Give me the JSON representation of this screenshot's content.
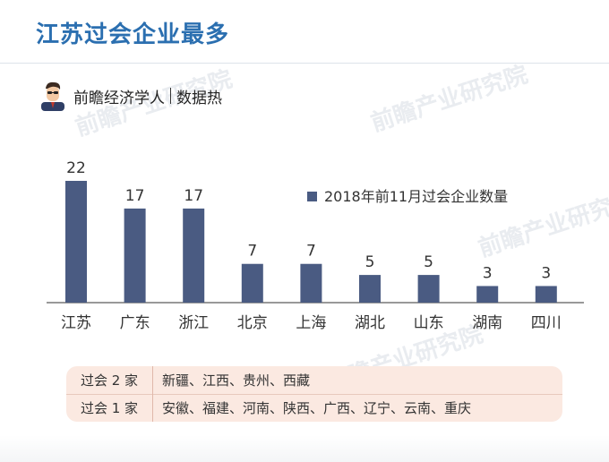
{
  "header": {
    "title": "江苏过会企业最多"
  },
  "brand": {
    "name": "前瞻经济学人",
    "sub": "数据热"
  },
  "watermark_text": "前瞻产业研究院",
  "chart_data": {
    "type": "bar",
    "categories": [
      "江苏",
      "广东",
      "浙江",
      "北京",
      "上海",
      "湖北",
      "山东",
      "湖南",
      "四川"
    ],
    "series": [
      {
        "name": "2018年前11月过会企业数量",
        "values": [
          22,
          17,
          17,
          7,
          7,
          5,
          5,
          3,
          3
        ],
        "color": "#4a5b82"
      }
    ],
    "ylim": [
      0,
      22
    ],
    "legend": "top-right",
    "grid": false
  },
  "table": {
    "rows": [
      {
        "label": "过会 2 家",
        "value": "新疆、江西、贵州、西藏"
      },
      {
        "label": "过会 1 家",
        "value": "安徽、福建、河南、陕西、广西、辽宁、云南、重庆"
      }
    ]
  },
  "colors": {
    "title": "#2b6fb0",
    "bar": "#4a5b82",
    "table_bg": "#fbe9e1"
  }
}
